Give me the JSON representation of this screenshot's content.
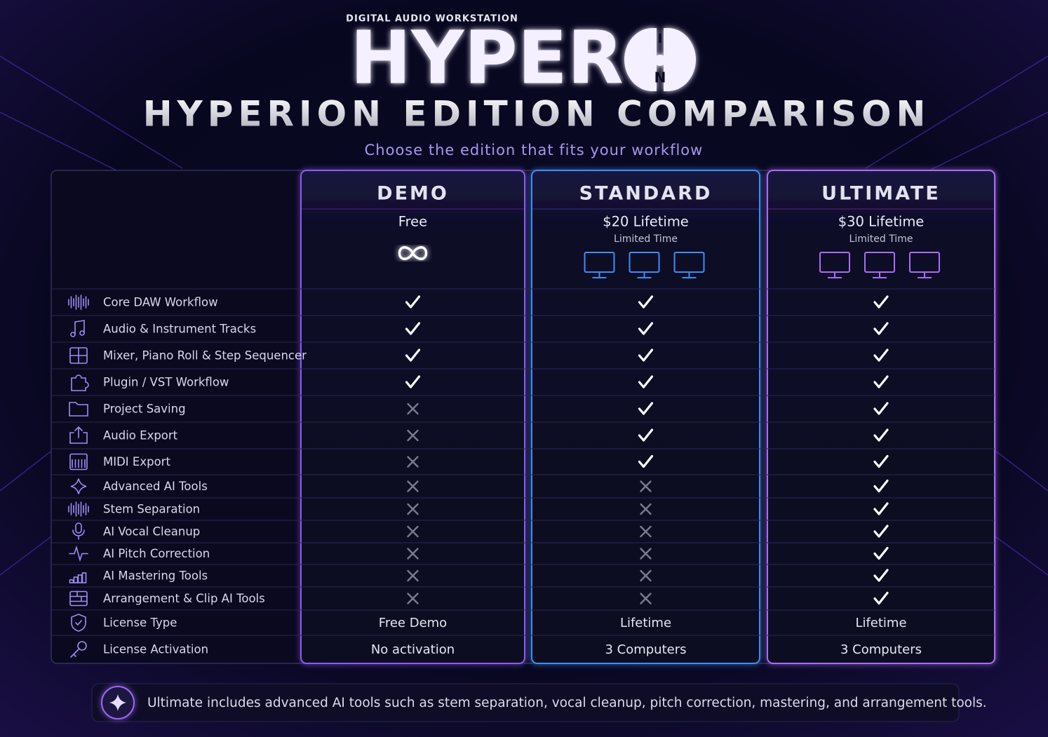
{
  "header": {
    "eyebrow": "DIGITAL AUDIO WORKSTATION",
    "logo": "HYPER",
    "logo_mark": [
      "I",
      "N"
    ],
    "title": "HYPERION EDITION COMPARISON",
    "subtitle": "Choose the edition that fits your workflow"
  },
  "editions": [
    {
      "name": "DEMO",
      "price": "Free",
      "color": "#8a5cf0"
    },
    {
      "name": "STANDARD",
      "price": "$20 Lifetime",
      "note": "Limited Time",
      "computers": 3,
      "color": "#3b8ff2"
    },
    {
      "name": "ULTIMATE",
      "price": "$30 Lifetime",
      "note": "Limited Time",
      "computers": 3,
      "color": "#a96cf7"
    }
  ],
  "features": [
    {
      "name": "Core DAW Workflow",
      "included": [
        true,
        true,
        true
      ]
    },
    {
      "name": "Audio & Instrument Tracks",
      "included": [
        true,
        true,
        true
      ]
    },
    {
      "name": "Mixer, Piano Roll & Step Sequencer",
      "included": [
        true,
        true,
        true
      ]
    },
    {
      "name": "Plugin / VST Workflow",
      "included": [
        true,
        true,
        true
      ]
    },
    {
      "name": "Project Saving",
      "included": [
        false,
        true,
        true
      ]
    },
    {
      "name": "Audio Export",
      "included": [
        false,
        true,
        true
      ]
    },
    {
      "name": "MIDI Export",
      "included": [
        false,
        true,
        true
      ]
    },
    {
      "name": "Advanced AI Tools",
      "included": [
        false,
        false,
        true
      ]
    },
    {
      "name": "Stem Separation",
      "included": [
        false,
        false,
        true
      ]
    },
    {
      "name": "AI Vocal Cleanup",
      "included": [
        false,
        false,
        true
      ]
    },
    {
      "name": "AI Pitch Correction",
      "included": [
        false,
        false,
        true
      ]
    },
    {
      "name": "AI Mastering Tools",
      "included": [
        false,
        false,
        true
      ]
    },
    {
      "name": "Arrangement & Clip AI Tools",
      "included": [
        false,
        false,
        true
      ]
    }
  ],
  "license_rows": [
    {
      "name": "License Type",
      "values": [
        "Free Demo",
        "Lifetime",
        "Lifetime"
      ]
    },
    {
      "name": "License Activation",
      "values": [
        "No activation",
        "3 Computers",
        "3 Computers"
      ]
    }
  ],
  "footer": "Ultimate includes advanced AI tools such as stem separation, vocal cleanup, pitch correction, mastering, and arrangement tools."
}
